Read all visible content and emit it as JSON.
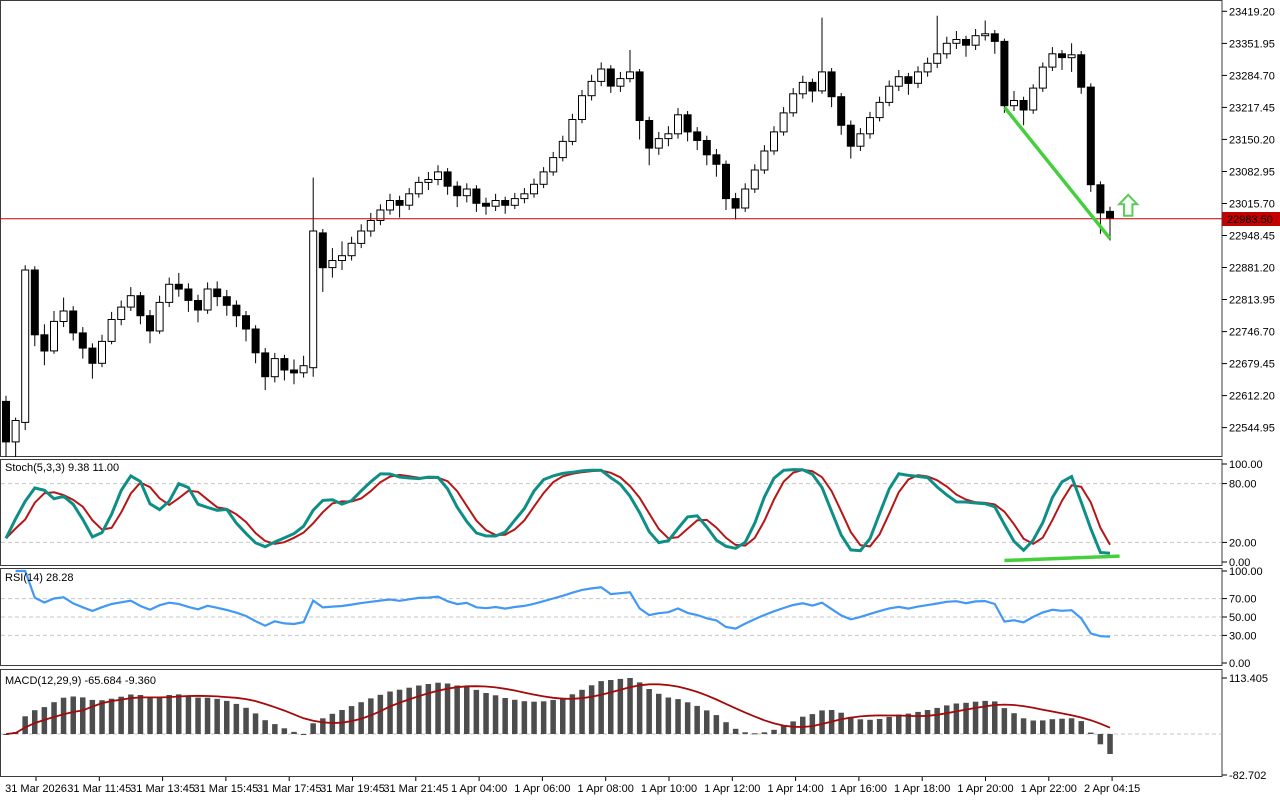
{
  "price_axis": {
    "ticks": [
      "23419.20",
      "23351.95",
      "23284.70",
      "23217.45",
      "23150.20",
      "23082.95",
      "23015.70",
      "22948.45",
      "22881.20",
      "22813.95",
      "22746.70",
      "22679.45",
      "22612.20",
      "22544.95"
    ],
    "current_price_label": "22983.50",
    "current_price_value": 22983.5,
    "tag_bg": "#c40000",
    "tag_text_color": "#ffffff"
  },
  "time_axis": {
    "labels": [
      "31 Mar 2026",
      "31 Mar 11:45",
      "31 Mar 13:45",
      "31 Mar 15:45",
      "31 Mar 17:45",
      "31 Mar 19:45",
      "31 Mar 21:45",
      "1 Apr 04:00",
      "1 Apr 06:00",
      "1 Apr 08:00",
      "1 Apr 10:00",
      "1 Apr 12:00",
      "1 Apr 14:00",
      "1 Apr 16:00",
      "1 Apr 18:00",
      "1 Apr 20:00",
      "1 Apr 22:00",
      "2 Apr 04:15"
    ]
  },
  "panels": {
    "stoch": {
      "label": "Stoch(5,3,3) 9.38 11.00",
      "params": [
        5,
        3,
        3
      ],
      "axis_ticks": [
        100,
        80,
        20,
        0
      ],
      "axis_tick_labels": [
        "100.00",
        "80.00",
        "20.00",
        "0.00"
      ],
      "levels": [
        80,
        20
      ],
      "k_color": "#0e8f86",
      "d_color": "#b51717"
    },
    "rsi": {
      "label": "RSI(14) 28.28",
      "params": [
        14
      ],
      "axis_ticks": [
        100,
        70,
        50,
        30,
        0
      ],
      "axis_tick_labels": [
        "100.00",
        "70.00",
        "50.00",
        "30.00",
        "0.00"
      ],
      "levels": [
        70,
        50,
        30
      ],
      "line_color": "#4298f5"
    },
    "macd": {
      "label": "MACD(12,29,9) -65.684 -9.360",
      "params": [
        12,
        29,
        9
      ],
      "axis_tick_labels": [
        "113.405",
        "-82.702"
      ],
      "axis_max": 113.405,
      "axis_min": -82.702,
      "hist_color": "#4d4d4d",
      "signal_color": "#a40a0a"
    }
  },
  "colors": {
    "bull_body": "#ffffff",
    "bear_body": "#000000",
    "candle_outline": "#000000",
    "bid_line": "#c40000",
    "trend_green": "#46cf3c",
    "arrow_green": "#5fc95f",
    "arrow_fill": "#f2fff2",
    "panel_border": "#3c3c3c",
    "level_dash": "#c6c6c6"
  },
  "chart_data": {
    "type": "candlestick",
    "price_range_visible": [
      22544.95,
      23419.2
    ],
    "bid_price": 22983.5,
    "candles": [
      [
        22600,
        22612,
        22484,
        22515
      ],
      [
        22515,
        22566,
        22468,
        22560
      ],
      [
        22556,
        22886,
        22540,
        22876
      ],
      [
        22876,
        22884,
        22716,
        22740
      ],
      [
        22740,
        22762,
        22676,
        22706
      ],
      [
        22706,
        22790,
        22700,
        22768
      ],
      [
        22768,
        22818,
        22756,
        22790
      ],
      [
        22790,
        22800,
        22728,
        22744
      ],
      [
        22744,
        22756,
        22690,
        22712
      ],
      [
        22712,
        22722,
        22648,
        22680
      ],
      [
        22680,
        22740,
        22672,
        22726
      ],
      [
        22726,
        22788,
        22720,
        22772
      ],
      [
        22772,
        22812,
        22760,
        22798
      ],
      [
        22798,
        22840,
        22790,
        22822
      ],
      [
        22822,
        22830,
        22762,
        22780
      ],
      [
        22780,
        22792,
        22722,
        22748
      ],
      [
        22748,
        22822,
        22742,
        22808
      ],
      [
        22808,
        22860,
        22798,
        22846
      ],
      [
        22846,
        22870,
        22820,
        22836
      ],
      [
        22836,
        22848,
        22788,
        22812
      ],
      [
        22812,
        22824,
        22766,
        22792
      ],
      [
        22792,
        22850,
        22784,
        22836
      ],
      [
        22836,
        22852,
        22800,
        22820
      ],
      [
        22820,
        22834,
        22780,
        22802
      ],
      [
        22802,
        22812,
        22756,
        22780
      ],
      [
        22780,
        22790,
        22726,
        22752
      ],
      [
        22752,
        22760,
        22680,
        22702
      ],
      [
        22702,
        22712,
        22624,
        22652
      ],
      [
        22652,
        22702,
        22640,
        22690
      ],
      [
        22690,
        22698,
        22644,
        22666
      ],
      [
        22666,
        22688,
        22636,
        22660
      ],
      [
        22660,
        22696,
        22650,
        22675
      ],
      [
        22671,
        23070,
        22652,
        22958
      ],
      [
        22954,
        22962,
        22830,
        22881
      ],
      [
        22881,
        22922,
        22860,
        22896
      ],
      [
        22896,
        22936,
        22876,
        22906
      ],
      [
        22906,
        22946,
        22896,
        22932
      ],
      [
        22932,
        22972,
        22922,
        22958
      ],
      [
        22958,
        22996,
        22946,
        22980
      ],
      [
        22980,
        23014,
        22970,
        23002
      ],
      [
        23002,
        23036,
        22992,
        23022
      ],
      [
        23022,
        23032,
        22986,
        23012
      ],
      [
        23012,
        23048,
        23002,
        23036
      ],
      [
        23036,
        23072,
        23028,
        23060
      ],
      [
        23060,
        23082,
        23044,
        23066
      ],
      [
        23066,
        23096,
        23054,
        23082
      ],
      [
        23082,
        23090,
        23034,
        23052
      ],
      [
        23052,
        23062,
        23008,
        23032
      ],
      [
        23032,
        23058,
        23018,
        23046
      ],
      [
        23046,
        23054,
        22998,
        23016
      ],
      [
        23016,
        23028,
        22992,
        23010
      ],
      [
        23010,
        23036,
        23000,
        23022
      ],
      [
        23022,
        23030,
        22994,
        23012
      ],
      [
        23012,
        23038,
        23004,
        23026
      ],
      [
        23026,
        23048,
        23016,
        23036
      ],
      [
        23036,
        23068,
        23028,
        23056
      ],
      [
        23056,
        23092,
        23048,
        23082
      ],
      [
        23082,
        23124,
        23074,
        23112
      ],
      [
        23112,
        23158,
        23104,
        23146
      ],
      [
        23146,
        23204,
        23138,
        23192
      ],
      [
        23192,
        23254,
        23184,
        23242
      ],
      [
        23242,
        23286,
        23232,
        23272
      ],
      [
        23272,
        23312,
        23262,
        23298
      ],
      [
        23298,
        23306,
        23248,
        23262
      ],
      [
        23262,
        23292,
        23250,
        23278
      ],
      [
        23278,
        23338,
        23270,
        23292
      ],
      [
        23292,
        23298,
        23150,
        23190
      ],
      [
        23190,
        23198,
        23096,
        23132
      ],
      [
        23132,
        23166,
        23118,
        23152
      ],
      [
        23152,
        23178,
        23136,
        23162
      ],
      [
        23162,
        23216,
        23152,
        23202
      ],
      [
        23202,
        23210,
        23146,
        23166
      ],
      [
        23166,
        23176,
        23128,
        23148
      ],
      [
        23148,
        23158,
        23096,
        23118
      ],
      [
        23118,
        23130,
        23072,
        23098
      ],
      [
        23098,
        23106,
        23002,
        23026
      ],
      [
        23026,
        23038,
        22982,
        23006
      ],
      [
        23006,
        23058,
        22998,
        23046
      ],
      [
        23046,
        23098,
        23038,
        23086
      ],
      [
        23086,
        23138,
        23078,
        23126
      ],
      [
        23126,
        23178,
        23118,
        23166
      ],
      [
        23166,
        23218,
        23158,
        23206
      ],
      [
        23206,
        23258,
        23198,
        23246
      ],
      [
        23246,
        23284,
        23236,
        23270
      ],
      [
        23270,
        23278,
        23228,
        23252
      ],
      [
        23252,
        23406,
        23246,
        23292
      ],
      [
        23292,
        23300,
        23218,
        23240
      ],
      [
        23240,
        23248,
        23160,
        23180
      ],
      [
        23180,
        23190,
        23110,
        23136
      ],
      [
        23136,
        23174,
        23126,
        23162
      ],
      [
        23162,
        23208,
        23152,
        23196
      ],
      [
        23196,
        23240,
        23188,
        23228
      ],
      [
        23228,
        23274,
        23220,
        23262
      ],
      [
        23262,
        23296,
        23252,
        23282
      ],
      [
        23282,
        23290,
        23244,
        23268
      ],
      [
        23268,
        23304,
        23258,
        23292
      ],
      [
        23292,
        23322,
        23282,
        23310
      ],
      [
        23310,
        23410,
        23300,
        23330
      ],
      [
        23330,
        23366,
        23320,
        23352
      ],
      [
        23352,
        23378,
        23340,
        23360
      ],
      [
        23360,
        23368,
        23324,
        23348
      ],
      [
        23348,
        23382,
        23338,
        23368
      ],
      [
        23368,
        23400,
        23358,
        23372
      ],
      [
        23372,
        23380,
        23330,
        23356
      ],
      [
        23356,
        23362,
        23206,
        23221
      ],
      [
        23221,
        23252,
        23210,
        23232
      ],
      [
        23232,
        23240,
        23180,
        23212
      ],
      [
        23212,
        23266,
        23204,
        23258
      ],
      [
        23258,
        23312,
        23250,
        23302
      ],
      [
        23302,
        23344,
        23294,
        23330
      ],
      [
        23330,
        23338,
        23296,
        23322
      ],
      [
        23322,
        23352,
        23292,
        23328
      ],
      [
        23328,
        23336,
        23246,
        23260
      ],
      [
        23260,
        23268,
        23040,
        23055
      ],
      [
        23055,
        23062,
        22952,
        22996
      ],
      [
        22999,
        23009,
        22938,
        22984
      ]
    ],
    "overlays": {
      "price_trendline": {
        "from_bar": 104,
        "from_price": 23218,
        "to_bar": 115,
        "to_price": 22942
      },
      "stoch_trendline": {
        "from_bar": 104,
        "from_value": 1.5,
        "to_bar": 116,
        "to_value": 6
      },
      "arrow": {
        "bar": 116.9,
        "price_top": 23034,
        "price_bottom": 22990
      }
    }
  }
}
